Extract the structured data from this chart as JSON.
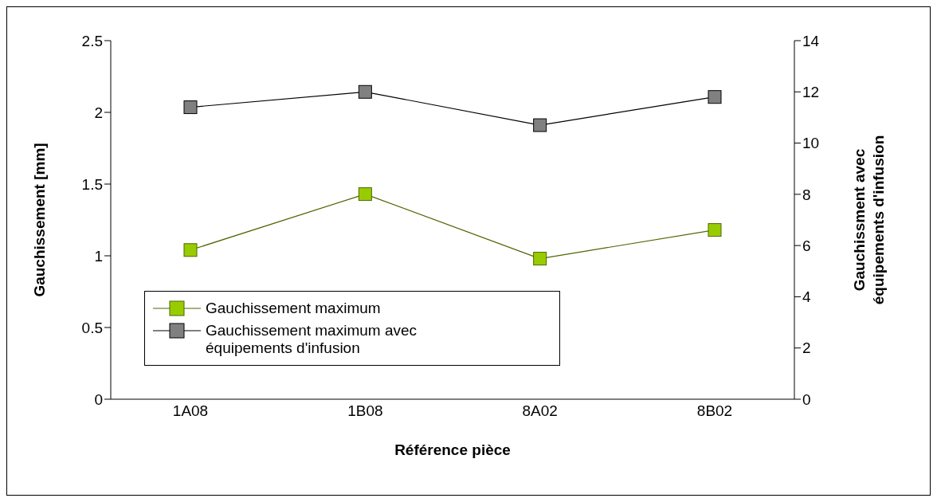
{
  "chart_data": {
    "type": "line",
    "categories": [
      "1A08",
      "1B08",
      "8A02",
      "8B02"
    ],
    "xlabel": "Référence pièce",
    "ylabel": "Gauchissement [mm]",
    "y2label": "Gauchissment avec équipements d'infusion",
    "ylim": [
      0,
      2.5
    ],
    "yticks": [
      0,
      0.5,
      1,
      1.5,
      2,
      2.5
    ],
    "y2lim": [
      0,
      14
    ],
    "y2ticks": [
      0,
      2,
      4,
      6,
      8,
      10,
      12,
      14
    ],
    "series": [
      {
        "name": "Gauchissement maximum",
        "color": "#99cc00",
        "values": [
          1.04,
          1.43,
          0.98,
          1.18
        ]
      },
      {
        "name": "Gauchissement maximum avec équipements d'infusion",
        "color": "#808080",
        "axis": "y2",
        "values": [
          11.4,
          12.0,
          10.7,
          11.8
        ]
      }
    ],
    "marker": "square",
    "grid": false,
    "legend": "bottom left"
  }
}
